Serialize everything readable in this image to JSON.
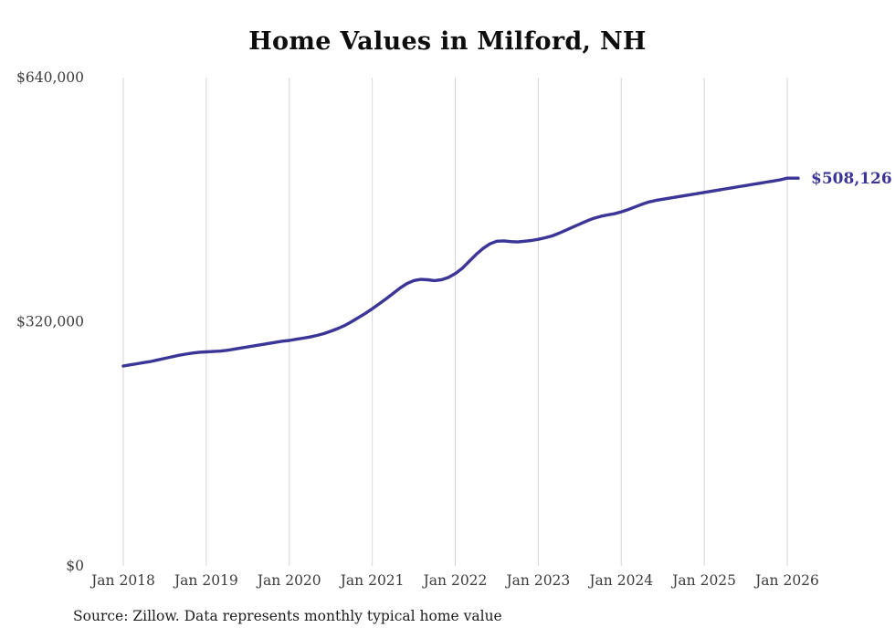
{
  "chart_data": {
    "type": "line",
    "title": "Home Values in Milford, NH",
    "series_name": "Typical home value",
    "source_note": "Source: Zillow. Data represents monthly typical home value",
    "line_color": "#3b3597",
    "grid_color": "#d6d6d6",
    "grid": "vertical-only",
    "legend": "none",
    "ylim": [
      0,
      640000
    ],
    "ytick_values": [
      0,
      320000,
      640000
    ],
    "ytick_labels": [
      "$0",
      "$320,000",
      "$640,000"
    ],
    "xtick_labels": [
      "Jan 2018",
      "Jan 2019",
      "Jan 2020",
      "Jan 2021",
      "Jan 2022",
      "Jan 2023",
      "Jan 2024",
      "Jan 2025",
      "Jan 2026"
    ],
    "end_label": "$508,126",
    "end_value": 508126,
    "x": [
      "2018-01",
      "2018-02",
      "2018-03",
      "2018-04",
      "2018-05",
      "2018-06",
      "2018-07",
      "2018-08",
      "2018-09",
      "2018-10",
      "2018-11",
      "2018-12",
      "2019-01",
      "2019-02",
      "2019-03",
      "2019-04",
      "2019-05",
      "2019-06",
      "2019-07",
      "2019-08",
      "2019-09",
      "2019-10",
      "2019-11",
      "2019-12",
      "2020-01",
      "2020-02",
      "2020-03",
      "2020-04",
      "2020-05",
      "2020-06",
      "2020-07",
      "2020-08",
      "2020-09",
      "2020-10",
      "2020-11",
      "2020-12",
      "2021-01",
      "2021-02",
      "2021-03",
      "2021-04",
      "2021-05",
      "2021-06",
      "2021-07",
      "2021-08",
      "2021-09",
      "2021-10",
      "2021-11",
      "2021-12",
      "2022-01",
      "2022-02",
      "2022-03",
      "2022-04",
      "2022-05",
      "2022-06",
      "2022-07",
      "2022-08",
      "2022-09",
      "2022-10",
      "2022-11",
      "2022-12",
      "2023-01",
      "2023-02",
      "2023-03",
      "2023-04",
      "2023-05",
      "2023-06",
      "2023-07",
      "2023-08",
      "2023-09",
      "2023-10",
      "2023-11",
      "2023-12",
      "2024-01",
      "2024-02",
      "2024-03",
      "2024-04",
      "2024-05",
      "2024-06",
      "2024-07",
      "2024-08",
      "2024-09",
      "2024-10",
      "2024-11",
      "2024-12",
      "2025-01",
      "2025-02",
      "2025-03",
      "2025-04",
      "2025-05",
      "2025-06",
      "2025-07",
      "2025-08",
      "2025-09",
      "2025-10",
      "2025-11",
      "2025-12",
      "2026-01"
    ],
    "values": [
      262000,
      263500,
      265000,
      266500,
      268000,
      270000,
      272000,
      274000,
      276000,
      277500,
      279000,
      280000,
      280500,
      281000,
      281500,
      282500,
      284000,
      285500,
      287000,
      288500,
      290000,
      291500,
      293000,
      294500,
      295500,
      297000,
      298500,
      300000,
      302000,
      304500,
      307500,
      311000,
      315000,
      320000,
      325500,
      331000,
      337000,
      343500,
      350000,
      357000,
      364000,
      370000,
      374000,
      375500,
      375000,
      374000,
      375000,
      378000,
      383000,
      390000,
      399000,
      408000,
      416000,
      422000,
      425500,
      426000,
      425000,
      424500,
      425500,
      426500,
      428000,
      430000,
      432500,
      436000,
      440000,
      444000,
      448000,
      452000,
      455500,
      458000,
      460000,
      461500,
      464000,
      467000,
      470500,
      474000,
      477000,
      479000,
      480500,
      482000,
      483500,
      485000,
      486500,
      488000,
      489500,
      491000,
      492500,
      494000,
      495500,
      497000,
      498500,
      500000,
      501500,
      503000,
      504500,
      506000,
      508126
    ]
  }
}
